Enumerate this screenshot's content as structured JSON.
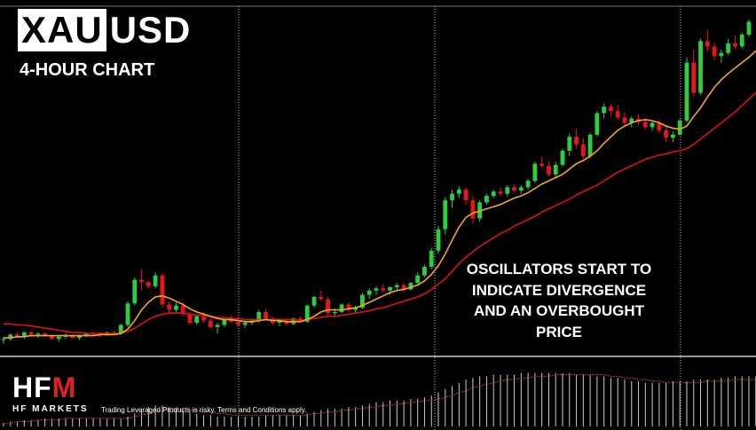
{
  "header": {
    "title_highlight": "XAU",
    "title_rest": "USD",
    "subtitle": "4-HOUR CHART"
  },
  "annotation": {
    "lines": [
      "OSCILLATORS START TO",
      "INDICATE DIVERGENCE",
      "AND AN OVERBOUGHT",
      "PRICE"
    ]
  },
  "branding": {
    "logo_letters": "HF",
    "logo_m": "M",
    "logo_sub": "HF MARKETS",
    "disclaimer": "Trading Leveraged Products is risky. Terms and Conditions apply."
  },
  "colors": {
    "background": "#000000",
    "bull": "#2ecc40",
    "bear": "#e8141c",
    "fast_ma": "#f5a623",
    "slow_ma": "#d9121a",
    "grid": "#bbbbbb",
    "separator": "#9a9a9a",
    "oscillator": "#cccccc",
    "oscillator_signal": "#c0392b"
  },
  "chart_data": {
    "type": "candlestick",
    "grid": "vertical dotted",
    "candles": [
      [
        92,
        95,
        88,
        93
      ],
      [
        93,
        98,
        91,
        97
      ],
      [
        97,
        99,
        94,
        95
      ],
      [
        95,
        100,
        93,
        99
      ],
      [
        99,
        101,
        96,
        97
      ],
      [
        97,
        99,
        94,
        98
      ],
      [
        98,
        99,
        95,
        96
      ],
      [
        96,
        97,
        92,
        93
      ],
      [
        93,
        96,
        90,
        95
      ],
      [
        95,
        98,
        93,
        96
      ],
      [
        96,
        97,
        93,
        94
      ],
      [
        94,
        97,
        92,
        96
      ],
      [
        96,
        99,
        95,
        98
      ],
      [
        98,
        100,
        96,
        97
      ],
      [
        97,
        99,
        95,
        98
      ],
      [
        98,
        100,
        96,
        99
      ],
      [
        99,
        101,
        97,
        98
      ],
      [
        98,
        107,
        97,
        106
      ],
      [
        106,
        128,
        104,
        126
      ],
      [
        126,
        150,
        124,
        148
      ],
      [
        148,
        158,
        138,
        146
      ],
      [
        146,
        147,
        140,
        142
      ],
      [
        142,
        155,
        140,
        152
      ],
      [
        152,
        154,
        122,
        125
      ],
      [
        125,
        128,
        116,
        120
      ],
      [
        120,
        127,
        117,
        124
      ],
      [
        124,
        127,
        114,
        116
      ],
      [
        116,
        118,
        106,
        108
      ],
      [
        108,
        116,
        106,
        114
      ],
      [
        114,
        118,
        108,
        110
      ],
      [
        110,
        113,
        102,
        104
      ],
      [
        104,
        108,
        98,
        106
      ],
      [
        106,
        112,
        104,
        111
      ],
      [
        111,
        115,
        108,
        109
      ],
      [
        109,
        112,
        104,
        106
      ],
      [
        106,
        110,
        103,
        108
      ],
      [
        108,
        112,
        106,
        110
      ],
      [
        110,
        120,
        108,
        118
      ],
      [
        118,
        121,
        110,
        112
      ],
      [
        112,
        114,
        106,
        108
      ],
      [
        108,
        112,
        105,
        110
      ],
      [
        110,
        112,
        105,
        107
      ],
      [
        107,
        113,
        106,
        112
      ],
      [
        112,
        114,
        108,
        109
      ],
      [
        109,
        125,
        108,
        124
      ],
      [
        124,
        133,
        122,
        132
      ],
      [
        132,
        138,
        128,
        130
      ],
      [
        130,
        132,
        115,
        117
      ],
      [
        117,
        121,
        114,
        118
      ],
      [
        118,
        126,
        117,
        125
      ],
      [
        125,
        127,
        118,
        120
      ],
      [
        120,
        124,
        117,
        122
      ],
      [
        122,
        136,
        121,
        134
      ],
      [
        134,
        140,
        130,
        138
      ],
      [
        138,
        142,
        134,
        140
      ],
      [
        140,
        144,
        136,
        138
      ],
      [
        138,
        142,
        134,
        141
      ],
      [
        141,
        145,
        138,
        143
      ],
      [
        143,
        145,
        137,
        139
      ],
      [
        139,
        146,
        138,
        145
      ],
      [
        145,
        155,
        143,
        152
      ],
      [
        152,
        162,
        150,
        160
      ],
      [
        160,
        178,
        158,
        175
      ],
      [
        175,
        198,
        172,
        195
      ],
      [
        195,
        225,
        190,
        222
      ],
      [
        222,
        232,
        215,
        228
      ],
      [
        228,
        235,
        224,
        232
      ],
      [
        232,
        234,
        218,
        222
      ],
      [
        222,
        226,
        200,
        205
      ],
      [
        205,
        222,
        202,
        220
      ],
      [
        220,
        228,
        218,
        226
      ],
      [
        226,
        232,
        224,
        230
      ],
      [
        230,
        234,
        226,
        228
      ],
      [
        228,
        236,
        226,
        234
      ],
      [
        234,
        237,
        229,
        231
      ],
      [
        231,
        236,
        228,
        234
      ],
      [
        234,
        242,
        232,
        240
      ],
      [
        240,
        258,
        238,
        256
      ],
      [
        256,
        262,
        252,
        254
      ],
      [
        254,
        258,
        244,
        246
      ],
      [
        246,
        258,
        243,
        255
      ],
      [
        255,
        270,
        253,
        268
      ],
      [
        268,
        284,
        263,
        281
      ],
      [
        281,
        288,
        270,
        274
      ],
      [
        274,
        280,
        261,
        263
      ],
      [
        263,
        285,
        261,
        283
      ],
      [
        283,
        305,
        281,
        303
      ],
      [
        303,
        312,
        298,
        309
      ],
      [
        309,
        312,
        300,
        305
      ],
      [
        305,
        311,
        297,
        299
      ],
      [
        299,
        304,
        290,
        294
      ],
      [
        294,
        300,
        290,
        298
      ],
      [
        298,
        302,
        292,
        295
      ],
      [
        295,
        298,
        288,
        290
      ],
      [
        290,
        296,
        287,
        294
      ],
      [
        294,
        297,
        284,
        287
      ],
      [
        287,
        292,
        276,
        280
      ],
      [
        280,
        286,
        276,
        283
      ],
      [
        283,
        298,
        282,
        296
      ],
      [
        296,
        355,
        294,
        350
      ],
      [
        350,
        362,
        318,
        322
      ],
      [
        322,
        372,
        320,
        370
      ],
      [
        370,
        380,
        360,
        365
      ],
      [
        365,
        368,
        352,
        356
      ],
      [
        356,
        362,
        350,
        359
      ],
      [
        359,
        372,
        357,
        368
      ],
      [
        368,
        375,
        363,
        365
      ],
      [
        365,
        378,
        363,
        376
      ],
      [
        376,
        390,
        374,
        388
      ]
    ],
    "fast_ma": [
      94,
      94,
      95,
      95,
      96,
      96,
      96,
      96,
      96,
      96,
      96,
      96,
      96,
      96,
      97,
      97,
      97,
      98,
      102,
      110,
      120,
      127,
      132,
      133,
      131,
      128,
      125,
      121,
      118,
      116,
      114,
      112,
      111,
      111,
      110,
      109,
      109,
      110,
      111,
      110,
      110,
      109,
      109,
      109,
      111,
      114,
      118,
      120,
      120,
      120,
      121,
      122,
      124,
      127,
      130,
      133,
      136,
      138,
      139,
      141,
      143,
      147,
      153,
      161,
      172,
      185,
      197,
      206,
      210,
      212,
      214,
      216,
      218,
      221,
      224,
      226,
      229,
      233,
      237,
      240,
      243,
      246,
      251,
      256,
      259,
      263,
      268,
      275,
      281,
      287,
      291,
      294,
      296,
      297,
      296,
      294,
      291,
      289,
      288,
      291,
      300,
      308,
      318,
      327,
      334,
      340,
      345,
      350,
      355,
      361
    ],
    "slow_ma": [
      107,
      107,
      106,
      106,
      105,
      104,
      103,
      102,
      101,
      100,
      99,
      99,
      98,
      98,
      98,
      98,
      98,
      98,
      100,
      103,
      107,
      111,
      114,
      116,
      117,
      117,
      117,
      116,
      115,
      115,
      114,
      113,
      113,
      112,
      112,
      111,
      111,
      111,
      111,
      111,
      111,
      111,
      111,
      110,
      111,
      112,
      113,
      114,
      114,
      115,
      116,
      117,
      118,
      119,
      121,
      122,
      124,
      126,
      128,
      130,
      132,
      135,
      139,
      144,
      149,
      156,
      163,
      169,
      174,
      179,
      183,
      187,
      191,
      194,
      198,
      201,
      204,
      207,
      211,
      214,
      217,
      220,
      223,
      227,
      230,
      233,
      236,
      240,
      244,
      248,
      251,
      254,
      257,
      260,
      262,
      264,
      265,
      267,
      268,
      270,
      274,
      279,
      284,
      289,
      294,
      299,
      304,
      310,
      316,
      322
    ],
    "oscillator": [
      2,
      3,
      3,
      4,
      4,
      4,
      5,
      5,
      5,
      5,
      5,
      5,
      5,
      5,
      5,
      5,
      5,
      5,
      6,
      8,
      10,
      12,
      13,
      13,
      12,
      11,
      10,
      9,
      8,
      7,
      7,
      6,
      6,
      6,
      6,
      6,
      6,
      6,
      7,
      7,
      7,
      7,
      7,
      7,
      8,
      9,
      10,
      11,
      11,
      11,
      12,
      12,
      13,
      14,
      15,
      15,
      16,
      16,
      16,
      17,
      17,
      18,
      19,
      21,
      23,
      25,
      27,
      29,
      30,
      31,
      31,
      32,
      32,
      32,
      32,
      33,
      33,
      33,
      33,
      33,
      33,
      33,
      33,
      32,
      32,
      32,
      31,
      31,
      30,
      30,
      29,
      28,
      28,
      27,
      27,
      27,
      27,
      28,
      28,
      28,
      29,
      29,
      29,
      29,
      30,
      30,
      31,
      31,
      31,
      31
    ],
    "oscillator_signal": [
      2,
      2,
      3,
      3,
      3,
      4,
      4,
      4,
      4,
      5,
      5,
      5,
      5,
      5,
      5,
      5,
      5,
      5,
      5,
      6,
      7,
      8,
      9,
      10,
      11,
      11,
      11,
      10,
      10,
      9,
      9,
      8,
      8,
      7,
      7,
      7,
      7,
      7,
      7,
      7,
      7,
      7,
      7,
      7,
      7,
      8,
      8,
      9,
      9,
      10,
      10,
      11,
      11,
      12,
      12,
      13,
      13,
      14,
      14,
      15,
      15,
      16,
      16,
      17,
      18,
      19,
      21,
      22,
      24,
      25,
      26,
      27,
      28,
      29,
      29,
      30,
      30,
      31,
      31,
      31,
      32,
      32,
      32,
      32,
      32,
      32,
      32,
      32,
      31,
      31,
      30,
      30,
      29,
      29,
      28,
      28,
      27,
      27,
      27,
      27,
      27,
      27,
      28,
      28,
      28,
      28,
      29,
      29,
      29,
      29
    ],
    "y_range": [
      80,
      400
    ],
    "oscillator_range": [
      0,
      40
    ]
  }
}
